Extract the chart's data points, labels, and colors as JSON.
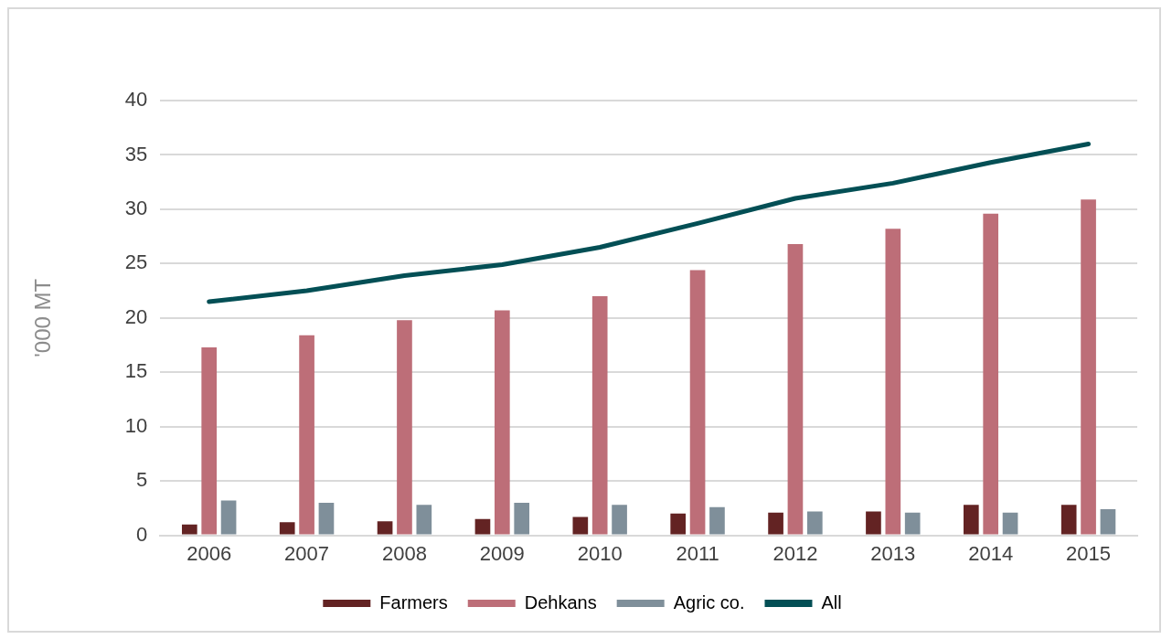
{
  "chart_data": {
    "type": "bar",
    "ylabel": "'000 MT",
    "categories": [
      "2006",
      "2007",
      "2008",
      "2009",
      "2010",
      "2011",
      "2012",
      "2013",
      "2014",
      "2015"
    ],
    "series": [
      {
        "name": "Farmers",
        "color": "#632323",
        "values": [
          1.0,
          1.2,
          1.3,
          1.5,
          1.7,
          2.0,
          2.1,
          2.2,
          2.8,
          2.8
        ]
      },
      {
        "name": "Dehkans",
        "color": "#bd6e78",
        "values": [
          17.3,
          18.4,
          19.8,
          20.7,
          22.0,
          24.4,
          26.8,
          28.2,
          29.6,
          30.9
        ]
      },
      {
        "name": "Agric co.",
        "color": "#7f8f9a",
        "values": [
          3.2,
          3.0,
          2.8,
          3.0,
          2.8,
          2.6,
          2.2,
          2.1,
          2.1,
          2.4
        ]
      },
      {
        "name": "All",
        "type": "line",
        "color": "#034f55",
        "values": [
          21.5,
          22.5,
          23.9,
          24.9,
          26.5,
          28.7,
          31.0,
          32.4,
          34.3,
          36.0
        ]
      }
    ],
    "ylim": [
      0,
      40
    ],
    "yticks": [
      0,
      5,
      10,
      15,
      20,
      25,
      30,
      35,
      40
    ],
    "grid": "y",
    "legend": "bottom",
    "marker": "none"
  }
}
